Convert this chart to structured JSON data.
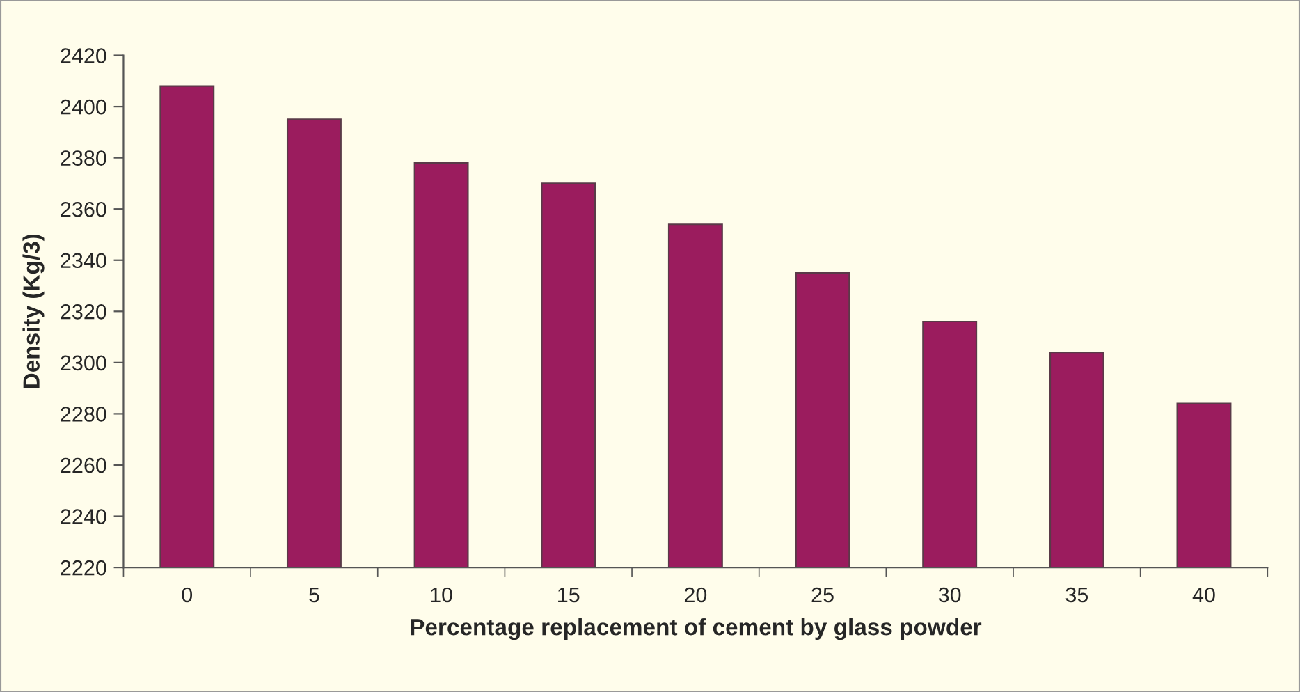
{
  "chart_data": {
    "type": "bar",
    "xlabel": "Percentage replacement of cement by glass powder",
    "ylabel": "Density (Kg/3)",
    "categories": [
      "0",
      "5",
      "10",
      "15",
      "20",
      "25",
      "30",
      "35",
      "40"
    ],
    "values": [
      2408,
      2395,
      2378,
      2370,
      2354,
      2335,
      2316,
      2304,
      2284
    ],
    "color": "#9b1c5e",
    "ylim": [
      2220,
      2420
    ],
    "yticks": [
      2220,
      2240,
      2260,
      2280,
      2300,
      2320,
      2340,
      2360,
      2380,
      2400,
      2420
    ],
    "grid": false,
    "legend": false
  }
}
